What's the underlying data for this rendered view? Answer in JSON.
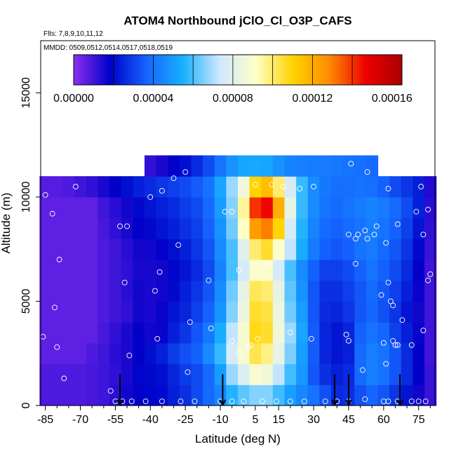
{
  "chart_data": {
    "type": "heatmap",
    "title": "ATOM4 Northbound jClO_Cl_O3P_CAFS",
    "flights_note": "Flts: 7,8,9,10,11,12",
    "dates_note": "MMDD: 0509,0512,0514,0517,0518,0519",
    "xlabel": "Latitude (deg N)",
    "ylabel": "Altitude (m)",
    "xlim": [
      -87,
      82
    ],
    "ylim": [
      0,
      17500
    ],
    "x_ticks": [
      -85,
      -70,
      -55,
      -40,
      -25,
      -10,
      5,
      15,
      30,
      45,
      60,
      75
    ],
    "y_ticks": [
      0,
      5000,
      10000,
      15000
    ],
    "colorbar": {
      "min": 0,
      "max": 0.000165,
      "tick_values": [
        0,
        4e-05,
        8e-05,
        0.00012,
        0.00016
      ],
      "tick_labels": [
        "0.00000",
        "0.00004",
        "0.00008",
        "0.00012",
        "0.00016"
      ],
      "colors": [
        "#8b2ff0",
        "#0000c8",
        "#1565ff",
        "#18b0ff",
        "#cfe8ff",
        "#ffffc8",
        "#ffd400",
        "#ff8c00",
        "#ee0000",
        "#aa0000"
      ]
    },
    "grid_latitudes": [
      -85,
      -80,
      -75,
      -70,
      -65,
      -60,
      -55,
      -50,
      -45,
      -40,
      -35,
      -30,
      -25,
      -20,
      -15,
      -10,
      -5,
      0,
      5,
      10,
      15,
      20,
      25,
      30,
      35,
      40,
      45,
      50,
      55,
      60,
      65,
      70,
      75,
      80
    ],
    "grid_altitudes": [
      500,
      1500,
      2500,
      3500,
      4500,
      5500,
      6500,
      7500,
      8500,
      9500,
      10500,
      11500
    ],
    "values_e5": [
      [
        0.8,
        0.8,
        0.8,
        0.8,
        0.9,
        1.0,
        1.3,
        1.6,
        1.8,
        1.9,
        2.0,
        2.4,
        2.7,
        3.2,
        3.8,
        4.4,
        5.6,
        6.2,
        6.6,
        6.6,
        5.9,
        5.1,
        4.5,
        4.0,
        3.3,
        2.6,
        2.7,
        3.3,
        3.7,
        3.4,
        2.8,
        2.2,
        1.6,
        1.1
      ],
      [
        0.8,
        0.8,
        0.8,
        0.8,
        0.9,
        1.0,
        1.2,
        1.5,
        1.9,
        2.0,
        2.1,
        2.5,
        2.9,
        3.2,
        3.8,
        5.0,
        6.8,
        7.8,
        8.9,
        8.6,
        7.2,
        5.9,
        4.9,
        3.4,
        2.7,
        2.4,
        2.6,
        3.8,
        4.3,
        4.0,
        3.4,
        2.6,
        1.8,
        1.1
      ],
      [
        0.6,
        0.6,
        0.6,
        0.6,
        0.8,
        1.0,
        1.3,
        1.5,
        1.8,
        2.1,
        2.4,
        2.9,
        3.3,
        3.6,
        4.6,
        5.8,
        7.6,
        8.8,
        10.3,
        9.8,
        8.2,
        6.5,
        5.0,
        3.5,
        2.5,
        2.2,
        2.4,
        3.8,
        4.3,
        4.0,
        3.4,
        2.6,
        1.8,
        1.0
      ],
      [
        0.6,
        0.6,
        0.6,
        0.6,
        0.6,
        0.9,
        1.2,
        1.5,
        1.8,
        1.6,
        1.7,
        2.4,
        2.8,
        3.4,
        4.1,
        5.4,
        7.2,
        8.8,
        10.8,
        10.6,
        8.6,
        6.8,
        5.2,
        3.5,
        2.5,
        2.2,
        2.5,
        3.6,
        4.0,
        3.7,
        3.0,
        2.4,
        1.7,
        1.0
      ],
      [
        0.6,
        0.6,
        0.6,
        0.6,
        0.6,
        0.8,
        1.0,
        1.2,
        1.6,
        1.5,
        1.7,
        2.2,
        2.5,
        3.0,
        3.6,
        4.8,
        6.6,
        8.4,
        10.6,
        10.4,
        8.4,
        6.4,
        5.0,
        3.4,
        2.6,
        2.5,
        2.8,
        3.4,
        3.7,
        3.3,
        2.8,
        2.2,
        1.6,
        1.0
      ],
      [
        0.6,
        0.6,
        0.6,
        0.6,
        0.6,
        0.8,
        1.0,
        1.3,
        1.6,
        1.5,
        1.6,
        2.0,
        2.4,
        2.8,
        3.4,
        4.6,
        6.4,
        8.2,
        10.2,
        10.0,
        8.2,
        6.2,
        4.8,
        3.4,
        2.7,
        2.7,
        3.0,
        3.4,
        3.8,
        3.4,
        3.0,
        2.4,
        1.7,
        1.0
      ],
      [
        0.6,
        0.6,
        0.6,
        0.6,
        0.6,
        0.8,
        1.0,
        1.2,
        1.5,
        1.5,
        1.6,
        1.9,
        2.2,
        2.6,
        3.2,
        4.4,
        6.0,
        7.6,
        9.0,
        9.0,
        7.6,
        6.0,
        4.6,
        3.6,
        3.0,
        3.0,
        3.2,
        3.6,
        4.0,
        3.6,
        3.2,
        2.6,
        1.8,
        1.0
      ],
      [
        0.6,
        0.6,
        0.6,
        0.6,
        0.6,
        0.8,
        1.0,
        1.3,
        1.6,
        1.6,
        1.8,
        2.1,
        2.4,
        2.8,
        3.4,
        4.6,
        6.0,
        8.0,
        10.0,
        10.6,
        9.0,
        7.2,
        5.4,
        4.2,
        3.6,
        3.4,
        3.6,
        4.0,
        4.2,
        3.8,
        3.4,
        2.8,
        2.0,
        1.1
      ],
      [
        0.6,
        0.6,
        0.6,
        0.6,
        0.6,
        0.9,
        1.2,
        1.5,
        1.8,
        2.0,
        2.2,
        2.4,
        2.7,
        3.0,
        3.6,
        4.8,
        6.4,
        9.2,
        12.4,
        13.0,
        11.0,
        7.6,
        5.6,
        4.4,
        3.8,
        3.6,
        3.8,
        4.0,
        4.3,
        4.0,
        3.6,
        3.0,
        2.2,
        1.2
      ],
      [
        0.6,
        0.6,
        0.6,
        0.6,
        0.6,
        1.0,
        1.3,
        1.6,
        2.0,
        2.2,
        2.4,
        2.6,
        2.9,
        3.2,
        3.8,
        5.0,
        6.6,
        9.6,
        14.0,
        14.6,
        12.0,
        8.2,
        5.8,
        4.6,
        4.0,
        3.8,
        4.0,
        4.2,
        4.4,
        4.2,
        3.8,
        3.2,
        2.4,
        1.3
      ],
      [
        0.7,
        0.7,
        0.8,
        1.0,
        1.2,
        1.5,
        1.8,
        2.1,
        2.4,
        2.6,
        2.8,
        3.0,
        3.2,
        3.5,
        4.0,
        5.2,
        6.8,
        8.6,
        11.0,
        11.6,
        10.0,
        7.6,
        5.8,
        4.6,
        4.1,
        3.9,
        3.9,
        4.0,
        3.9,
        3.6,
        3.2,
        2.8,
        2.4,
        1.4
      ],
      [
        null,
        null,
        null,
        null,
        null,
        null,
        null,
        null,
        null,
        1.2,
        1.5,
        1.8,
        2.1,
        2.6,
        3.2,
        4.0,
        4.8,
        5.2,
        5.3,
        5.2,
        4.8,
        4.4,
        4.3,
        4.2,
        4.2,
        4.1,
        4.0,
        3.9,
        3.8,
        null,
        null,
        null,
        null,
        null
      ]
    ],
    "sample_points": [
      {
        "x": -85,
        "y": 10100
      },
      {
        "x": -82,
        "y": 9200
      },
      {
        "x": -79,
        "y": 7000
      },
      {
        "x": -81,
        "y": 4700
      },
      {
        "x": -80,
        "y": 2800
      },
      {
        "x": -86,
        "y": 3300
      },
      {
        "x": -77,
        "y": 1300
      },
      {
        "x": -72,
        "y": 10500
      },
      {
        "x": -57,
        "y": 700
      },
      {
        "x": -55,
        "y": 200
      },
      {
        "x": -52,
        "y": 200
      },
      {
        "x": -48,
        "y": 200
      },
      {
        "x": -53,
        "y": 8600
      },
      {
        "x": -50,
        "y": 8600
      },
      {
        "x": -51,
        "y": 5900
      },
      {
        "x": -49,
        "y": 2400
      },
      {
        "x": -40,
        "y": 10000
      },
      {
        "x": -35,
        "y": 10300
      },
      {
        "x": -30,
        "y": 10900
      },
      {
        "x": -25,
        "y": 11200
      },
      {
        "x": -28,
        "y": 7700
      },
      {
        "x": -36,
        "y": 6400
      },
      {
        "x": -38,
        "y": 5500
      },
      {
        "x": -37,
        "y": 3200
      },
      {
        "x": -23,
        "y": 4000
      },
      {
        "x": -15,
        "y": 6000
      },
      {
        "x": -14,
        "y": 3700
      },
      {
        "x": -24,
        "y": 1600
      },
      {
        "x": -35,
        "y": 200
      },
      {
        "x": -42,
        "y": 200
      },
      {
        "x": -27,
        "y": 200
      },
      {
        "x": -21,
        "y": 200
      },
      {
        "x": -8,
        "y": 9300
      },
      {
        "x": -5,
        "y": 9300
      },
      {
        "x": -2,
        "y": 6500
      },
      {
        "x": -5,
        "y": 3100
      },
      {
        "x": -2,
        "y": 2500
      },
      {
        "x": 2,
        "y": 2800
      },
      {
        "x": 3,
        "y": 2900
      },
      {
        "x": 5,
        "y": 10600
      },
      {
        "x": 12,
        "y": 10600
      },
      {
        "x": 17,
        "y": 10500
      },
      {
        "x": 24,
        "y": 10400
      },
      {
        "x": 10,
        "y": 6800
      },
      {
        "x": 6,
        "y": 3200
      },
      {
        "x": 20,
        "y": 3500
      },
      {
        "x": 29,
        "y": 3200
      },
      {
        "x": 30,
        "y": 10500
      },
      {
        "x": 45,
        "y": 8200
      },
      {
        "x": 46,
        "y": 11600
      },
      {
        "x": 48,
        "y": 6800
      },
      {
        "x": 48,
        "y": 8000
      },
      {
        "x": 49,
        "y": 8200
      },
      {
        "x": 52,
        "y": 8400
      },
      {
        "x": 53,
        "y": 8000
      },
      {
        "x": 53,
        "y": 11200
      },
      {
        "x": 56,
        "y": 8200
      },
      {
        "x": 57,
        "y": 8600
      },
      {
        "x": 59,
        "y": 5300
      },
      {
        "x": 61,
        "y": 7800
      },
      {
        "x": 62,
        "y": 10400
      },
      {
        "x": 62,
        "y": 5900
      },
      {
        "x": 63,
        "y": 5000
      },
      {
        "x": 64,
        "y": 4800
      },
      {
        "x": 66,
        "y": 8700
      },
      {
        "x": 64,
        "y": 3100
      },
      {
        "x": 65,
        "y": 2900
      },
      {
        "x": 68,
        "y": 4100
      },
      {
        "x": 66,
        "y": 2900
      },
      {
        "x": 74,
        "y": 9300
      },
      {
        "x": 76,
        "y": 10500
      },
      {
        "x": 77,
        "y": 8200
      },
      {
        "x": 79,
        "y": 9400
      },
      {
        "x": 79,
        "y": 6000
      },
      {
        "x": 80,
        "y": 6300
      },
      {
        "x": 77,
        "y": 3600
      },
      {
        "x": 72,
        "y": 2900
      },
      {
        "x": 44,
        "y": 3400
      },
      {
        "x": 45,
        "y": 3100
      },
      {
        "x": 51,
        "y": 1700
      },
      {
        "x": 60,
        "y": 3000
      },
      {
        "x": 61,
        "y": 2000
      },
      {
        "x": 35,
        "y": 200
      },
      {
        "x": 40,
        "y": 200
      },
      {
        "x": 45,
        "y": 200
      },
      {
        "x": 52,
        "y": 300
      },
      {
        "x": 60,
        "y": 200
      },
      {
        "x": 62,
        "y": 200
      },
      {
        "x": 66,
        "y": 200
      },
      {
        "x": 72,
        "y": 200
      },
      {
        "x": 75,
        "y": 200
      },
      {
        "x": 78,
        "y": 200
      },
      {
        "x": -10,
        "y": 200
      },
      {
        "x": -5,
        "y": 200
      },
      {
        "x": 0,
        "y": 200
      },
      {
        "x": 8,
        "y": 200
      },
      {
        "x": 14,
        "y": 200
      },
      {
        "x": 20,
        "y": 200
      },
      {
        "x": 26,
        "y": 200
      }
    ],
    "arrows_at_latitude": [
      -53,
      -9,
      39,
      45,
      67
    ]
  }
}
